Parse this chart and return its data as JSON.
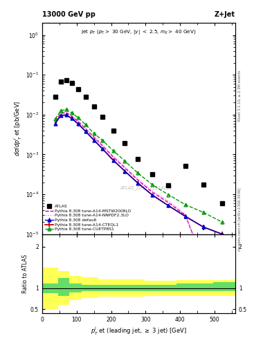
{
  "title_left": "13000 GeV pp",
  "title_right": "Z+Jet",
  "subtitle": "Jet p$_T$ (p$_T$ > 30 GeV, |y| < 2.5, m$_{ll}$ > 40 GeV)",
  "ylabel_main": "dσ/dp$_T^j$ et [pb/GeV]",
  "ylabel_ratio": "Ratio to ATLAS",
  "xlabel": "p$_T^j$ et (leading jet, ≥ 3 jet) [GeV]",
  "right_label1": "Rivet 3.1.10, ≥ 2.3M events",
  "right_label2": "mcplots.cern.ch [arXiv:1306.3436]",
  "watermark": "ATLAS_2017_I1514251",
  "atlas_x": [
    38,
    54,
    70,
    86,
    105,
    126,
    150,
    175,
    206,
    240,
    278,
    320,
    366,
    415,
    468,
    522
  ],
  "atlas_y": [
    0.028,
    0.068,
    0.072,
    0.062,
    0.044,
    0.028,
    0.016,
    0.0088,
    0.004,
    0.0019,
    0.00076,
    0.00032,
    0.000165,
    0.00052,
    0.000175,
    6e-05
  ],
  "pythia_x": [
    38,
    54,
    70,
    86,
    105,
    126,
    150,
    175,
    206,
    240,
    278,
    320,
    366,
    415,
    468,
    522
  ],
  "default_y": [
    0.006,
    0.0096,
    0.0098,
    0.008,
    0.0058,
    0.0038,
    0.0023,
    0.00138,
    0.00072,
    0.00038,
    0.00019,
    9.5e-05,
    5.2e-05,
    2.8e-05,
    1.5e-05,
    1e-05
  ],
  "cteq_y": [
    0.006,
    0.0096,
    0.0098,
    0.008,
    0.0058,
    0.0038,
    0.0023,
    0.00138,
    0.00072,
    0.00038,
    0.00019,
    9.5e-05,
    5.2e-05,
    2.8e-05,
    1.5e-05,
    1e-05
  ],
  "mstw_y": [
    0.0068,
    0.0108,
    0.0112,
    0.009,
    0.0066,
    0.0044,
    0.0027,
    0.00165,
    0.00086,
    0.00046,
    0.000225,
    0.000112,
    6.2e-05,
    3e-05,
    2e-06,
    5e-07
  ],
  "nnpdf_y": [
    0.0072,
    0.0115,
    0.012,
    0.0096,
    0.007,
    0.0047,
    0.0029,
    0.00176,
    0.00092,
    0.00049,
    0.00024,
    0.00012,
    6.8e-05,
    3.2e-05,
    2e-06,
    5e-07
  ],
  "cuetp_y": [
    0.0078,
    0.0125,
    0.0135,
    0.011,
    0.0083,
    0.0056,
    0.0034,
    0.00225,
    0.00125,
    0.00068,
    0.00034,
    0.000172,
    9.8e-05,
    5.5e-05,
    3.5e-05,
    2e-05
  ],
  "default_yerr_lo": [
    0.0004,
    0.0006,
    0.0006,
    0.0005,
    0.0004,
    0.00025,
    0.00015,
    0.0001,
    6e-05,
    3e-05,
    1.5e-05,
    8e-06,
    5e-06,
    3e-06,
    2e-06,
    1e-06
  ],
  "default_yerr_hi": [
    0.0004,
    0.0006,
    0.0006,
    0.0005,
    0.0004,
    0.00025,
    0.00015,
    0.0001,
    6e-05,
    3e-05,
    1.5e-05,
    8e-06,
    5e-06,
    3e-06,
    2e-06,
    1e-06
  ],
  "cteq_yerr_lo": [
    0.0006,
    0.0009,
    0.001,
    0.0008,
    0.0006,
    0.0004,
    0.00025,
    0.00015,
    8e-05,
    4.2e-05,
    2.1e-05,
    1.1e-05,
    6e-06,
    4e-06,
    2.5e-06,
    1.5e-06
  ],
  "cteq_yerr_hi": [
    0.0006,
    0.0009,
    0.001,
    0.0008,
    0.0006,
    0.0004,
    0.00025,
    0.00015,
    8e-05,
    4.2e-05,
    2.1e-05,
    1.1e-05,
    6e-06,
    4e-06,
    2.5e-06,
    1.5e-06
  ],
  "cuetp_yerr_lo": [
    0.0006,
    0.0009,
    0.001,
    0.0008,
    0.0006,
    0.0004,
    0.00025,
    0.00015,
    8.5e-05,
    4.6e-05,
    2.3e-05,
    1.2e-05,
    7e-06,
    5e-06,
    3e-06,
    2e-06
  ],
  "cuetp_yerr_hi": [
    0.0006,
    0.0009,
    0.001,
    0.0008,
    0.0006,
    0.0004,
    0.00025,
    0.00015,
    8.5e-05,
    4.6e-05,
    2.3e-05,
    1.2e-05,
    7e-06,
    5e-06,
    3e-06,
    2e-06
  ],
  "ratio_edges": [
    0,
    46,
    78,
    115,
    162,
    222,
    298,
    390,
    495,
    560
  ],
  "ratio_green_lo": [
    0.88,
    0.82,
    0.9,
    0.93,
    0.93,
    0.93,
    0.93,
    0.93,
    0.93
  ],
  "ratio_green_hi": [
    1.12,
    1.25,
    1.12,
    1.08,
    1.08,
    1.08,
    1.08,
    1.12,
    1.15
  ],
  "ratio_yellow_lo": [
    0.5,
    0.6,
    0.72,
    0.76,
    0.8,
    0.8,
    0.82,
    0.82,
    0.82
  ],
  "ratio_yellow_hi": [
    1.5,
    1.42,
    1.3,
    1.26,
    1.22,
    1.22,
    1.18,
    1.2,
    1.2
  ],
  "colors": {
    "atlas": "#000000",
    "default": "#0000cc",
    "cteq": "#cc0000",
    "mstw": "#cc0099",
    "nnpdf": "#ff66ff",
    "cuetp": "#009900",
    "green_band": "#66dd66",
    "yellow_band": "#ffff55"
  },
  "xlim": [
    0,
    560
  ],
  "ylim_main": [
    1e-05,
    2.0
  ],
  "ylim_ratio": [
    0.4,
    2.3
  ]
}
